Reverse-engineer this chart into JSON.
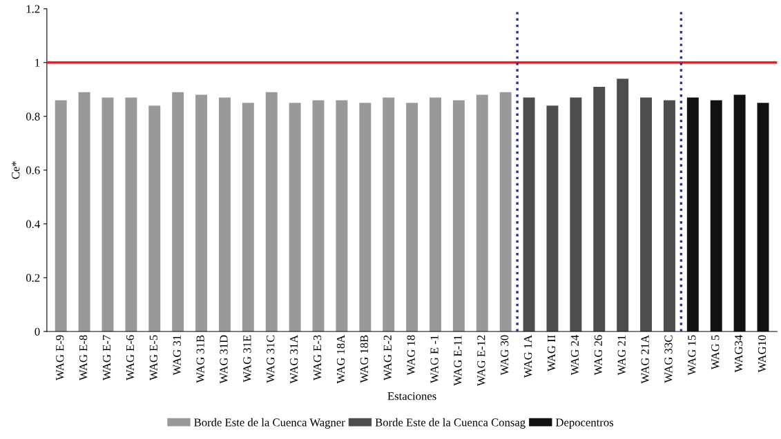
{
  "chart_data": {
    "type": "bar",
    "xlabel": "Estaciones",
    "ylabel": "Ce*",
    "categories": [
      "WAG E-9",
      "WAG E-8",
      "WAG E-7",
      "WAG E-6",
      "WAG E-5",
      "WAG 31",
      "WAG 31B",
      "WAG 31D",
      "WAG 31E",
      "WAG 31C",
      "WAG 31A",
      "WAG E-3",
      "WAG 18A",
      "WAG 18B",
      "WAG E-2",
      "WAG 18",
      "WAG E -1",
      "WAG E-11",
      "WAG E-12",
      "WAG 30",
      "WAG 1A",
      "WAG II",
      "WAG 24",
      "WAG 26",
      "WAG 21",
      "WAG 21A",
      "WAG 33C",
      "WAG 15",
      "WAG 5",
      "WAG34",
      "WAG10"
    ],
    "series": [
      {
        "name": "Borde Este de la Cuenca Wagner",
        "color": "#999999",
        "values": [
          0.86,
          0.89,
          0.87,
          0.87,
          0.84,
          0.89,
          0.88,
          0.87,
          0.85,
          0.89,
          0.85,
          0.86,
          0.86,
          0.85,
          0.87,
          0.85,
          0.87,
          0.86,
          0.88,
          0.89,
          null,
          null,
          null,
          null,
          null,
          null,
          null,
          null,
          null,
          null,
          null
        ]
      },
      {
        "name": "Borde Este de la Cuenca Consag",
        "color": "#4d4d4d",
        "values": [
          null,
          null,
          null,
          null,
          null,
          null,
          null,
          null,
          null,
          null,
          null,
          null,
          null,
          null,
          null,
          null,
          null,
          null,
          null,
          null,
          0.87,
          0.84,
          0.87,
          0.91,
          0.94,
          0.87,
          0.86,
          null,
          null,
          null,
          null
        ]
      },
      {
        "name": "Depocentros",
        "color": "#111111",
        "values": [
          null,
          null,
          null,
          null,
          null,
          null,
          null,
          null,
          null,
          null,
          null,
          null,
          null,
          null,
          null,
          null,
          null,
          null,
          null,
          null,
          null,
          null,
          null,
          null,
          null,
          null,
          null,
          0.87,
          0.86,
          0.88,
          0.85
        ]
      }
    ],
    "ylim": [
      0,
      1.2
    ],
    "yticks": [
      0,
      0.2,
      0.4,
      0.6,
      0.8,
      1,
      1.2
    ],
    "ref_lines": [
      {
        "axis": "y",
        "value": 1,
        "color": "#ee1c1c",
        "line_style": "solid"
      }
    ],
    "legend": "bottom",
    "grid": false
  }
}
